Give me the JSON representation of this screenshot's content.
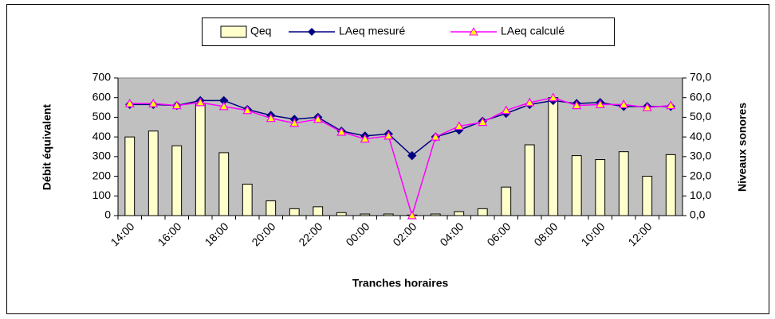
{
  "chart_data": {
    "type": "bar-line",
    "xlabel": "Tranches horaires",
    "ylabel": "Débit équivalent",
    "y2label": "Niveaux sonores",
    "categories": [
      "14:00",
      null,
      "16:00",
      null,
      "18:00",
      null,
      "20:00",
      null,
      "22:00",
      null,
      "00:00",
      null,
      "02:00",
      null,
      "04:00",
      null,
      "06:00",
      null,
      "08:00",
      null,
      "10:00",
      null,
      "12:00",
      null
    ],
    "series": [
      {
        "name": "Qeq",
        "type": "bar",
        "color": "#ffffcc",
        "axis": "y",
        "values": [
          400,
          430,
          355,
          570,
          320,
          160,
          75,
          35,
          45,
          15,
          8,
          8,
          3,
          8,
          20,
          35,
          145,
          360,
          600,
          305,
          285,
          325,
          200,
          310
        ]
      },
      {
        "name": "LAeq mesuré",
        "type": "line",
        "color": "#000080",
        "marker": "diamond",
        "axis": "y2",
        "values": [
          56.5,
          56.5,
          56,
          58.5,
          58.5,
          54,
          51,
          49,
          50,
          43,
          40.5,
          41.5,
          30.5,
          40,
          43.5,
          48,
          52,
          56.5,
          58.5,
          57,
          57.5,
          55.5,
          55.5,
          55.5
        ]
      },
      {
        "name": "LAeq calculé",
        "type": "line",
        "color": "#ff00ff",
        "marker": "triangle",
        "axis": "y2",
        "values": [
          57,
          57,
          56,
          57.5,
          55.5,
          53.5,
          49.5,
          47,
          49,
          42.5,
          39,
          40.5,
          0,
          40,
          45.5,
          47.5,
          53.5,
          57.5,
          60,
          56,
          56.5,
          56.5,
          55,
          56
        ]
      }
    ],
    "ylim": [
      0,
      700
    ],
    "yticks": [
      0,
      100,
      200,
      300,
      400,
      500,
      600,
      700
    ],
    "y2lim": [
      0,
      70
    ],
    "y2ticks": [
      {
        "value": 0,
        "label": "0,0"
      },
      {
        "value": 10,
        "label": "10,0"
      },
      {
        "value": 20,
        "label": "20,0"
      },
      {
        "value": 30,
        "label": "30,0"
      },
      {
        "value": 40,
        "label": "40,0"
      },
      {
        "value": 50,
        "label": "50,0"
      },
      {
        "value": 60,
        "label": "60,0"
      },
      {
        "value": 70,
        "label": "70,0"
      }
    ],
    "grid": false,
    "legend": "top",
    "plot_background": "#c0c0c0"
  }
}
